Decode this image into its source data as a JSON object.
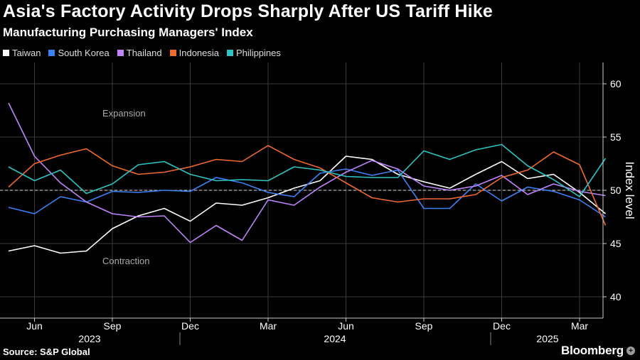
{
  "title": "Asia's Factory Activity Drops Sharply After US Tariff Hike",
  "subtitle": "Manufacturing Purchasing Managers' Index",
  "source": "Source: S&P Global",
  "brand": "Bloomberg",
  "chart_data": {
    "type": "line",
    "ylabel": "Index level",
    "ylim": [
      38,
      63
    ],
    "yticks": [
      40,
      45,
      50,
      55,
      60
    ],
    "reference_line": 50,
    "annotations": [
      "Expansion",
      "Contraction"
    ],
    "x_month_labels": [
      "Jun",
      "Sep",
      "Dec",
      "Mar",
      "Jun",
      "Sep",
      "Dec",
      "Mar"
    ],
    "x_year_labels": [
      "2023",
      "2024",
      "2025"
    ],
    "x": [
      "2023-05",
      "2023-06",
      "2023-07",
      "2023-08",
      "2023-09",
      "2023-10",
      "2023-11",
      "2023-12",
      "2024-01",
      "2024-02",
      "2024-03",
      "2024-04",
      "2024-05",
      "2024-06",
      "2024-07",
      "2024-08",
      "2024-09",
      "2024-10",
      "2024-11",
      "2024-12",
      "2025-01",
      "2025-02",
      "2025-03",
      "2025-04"
    ],
    "series": [
      {
        "name": "Taiwan",
        "color": "#ffffff",
        "values": [
          44.3,
          44.8,
          44.1,
          44.3,
          46.4,
          47.6,
          48.3,
          47.1,
          48.8,
          48.6,
          49.3,
          50.2,
          50.9,
          53.2,
          52.9,
          51.5,
          50.8,
          50.2,
          51.5,
          52.7,
          51.1,
          51.5,
          49.8,
          47.8
        ]
      },
      {
        "name": "South Korea",
        "color": "#3b82f6",
        "values": [
          48.4,
          47.8,
          49.4,
          48.9,
          49.9,
          49.8,
          50.0,
          49.9,
          51.2,
          50.7,
          49.8,
          49.4,
          51.6,
          52.0,
          51.4,
          51.9,
          48.3,
          48.3,
          50.6,
          49.0,
          50.3,
          49.9,
          49.1,
          47.5
        ]
      },
      {
        "name": "Thailand",
        "color": "#c084fc",
        "values": [
          58.2,
          53.2,
          50.7,
          48.9,
          47.8,
          47.5,
          47.6,
          45.1,
          46.7,
          45.3,
          49.1,
          48.6,
          50.3,
          51.7,
          52.8,
          52.0,
          50.4,
          50.0,
          50.4,
          51.4,
          49.6,
          50.6,
          49.9,
          49.5
        ]
      },
      {
        "name": "Indonesia",
        "color": "#ef6a2e",
        "values": [
          50.3,
          52.5,
          53.3,
          53.9,
          52.3,
          51.5,
          51.7,
          52.2,
          52.9,
          52.7,
          54.2,
          52.9,
          52.1,
          50.7,
          49.3,
          48.9,
          49.2,
          49.2,
          49.6,
          51.2,
          51.9,
          53.6,
          52.4,
          46.7
        ]
      },
      {
        "name": "Philippines",
        "color": "#2ec4c4",
        "values": [
          52.2,
          50.9,
          51.9,
          49.7,
          50.6,
          52.4,
          52.7,
          51.5,
          50.9,
          51.0,
          50.9,
          52.2,
          51.9,
          51.3,
          51.2,
          51.2,
          53.7,
          52.9,
          53.8,
          54.3,
          52.3,
          51.0,
          49.4,
          53.0
        ]
      }
    ]
  }
}
